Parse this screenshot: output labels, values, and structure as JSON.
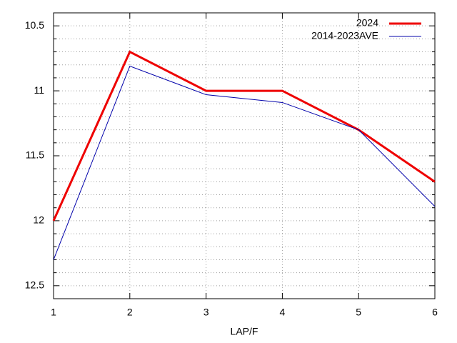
{
  "chart_data": {
    "type": "line",
    "xlabel": "LAP/F",
    "x": [
      1,
      2,
      3,
      4,
      5,
      6
    ],
    "series": [
      {
        "name": "2024",
        "color": "#ee0000",
        "width": 3,
        "values": [
          12.0,
          10.7,
          11.0,
          11.0,
          11.3,
          11.7
        ]
      },
      {
        "name": "2014-2023AVE",
        "color": "#0000aa",
        "width": 1,
        "values": [
          12.3,
          10.81,
          11.03,
          11.09,
          11.3,
          11.89
        ]
      }
    ],
    "xlim": [
      1,
      6
    ],
    "xticks": [
      1,
      2,
      3,
      4,
      5,
      6
    ],
    "ylim": [
      10.4,
      12.6
    ],
    "y_reversed": true,
    "yticks": [
      10.5,
      11,
      11.5,
      12,
      12.5
    ],
    "yminorticks": [
      10.4,
      10.6,
      10.7,
      10.8,
      10.9,
      11.1,
      11.2,
      11.3,
      11.4,
      11.6,
      11.7,
      11.8,
      11.9,
      12.1,
      12.2,
      12.3,
      12.4,
      12.6
    ],
    "grid": true,
    "legend": "top-right"
  }
}
